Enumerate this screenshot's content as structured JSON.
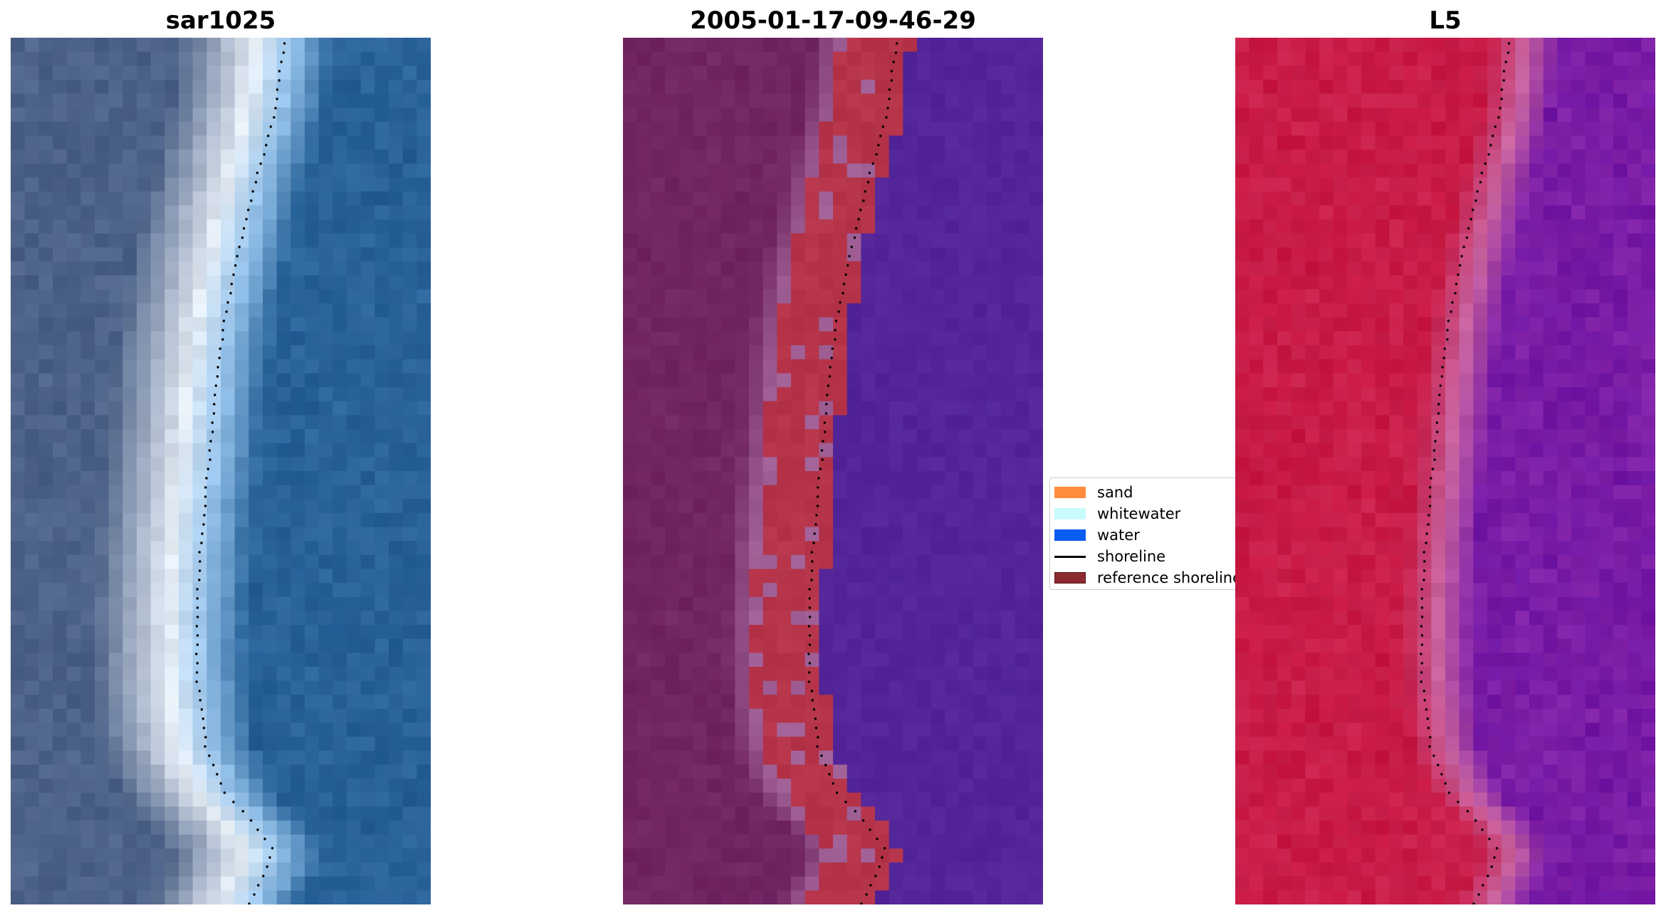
{
  "panels": [
    {
      "title": "sar1025",
      "kind": "rgb"
    },
    {
      "title": "2005-01-17-09-46-29",
      "kind": "classified"
    },
    {
      "title": "L5",
      "kind": "false-color"
    }
  ],
  "legend": {
    "items": [
      {
        "label": "sand",
        "color": "#ff8c3a",
        "shape": "patch"
      },
      {
        "label": "whitewater",
        "color": "#c8fcfb",
        "shape": "patch"
      },
      {
        "label": "water",
        "color": "#0a5cf0",
        "shape": "patch"
      },
      {
        "label": "shoreline",
        "color": "#000000",
        "shape": "line"
      },
      {
        "label": "reference shoreline",
        "color": "#8b2a30",
        "shape": "patch"
      }
    ]
  },
  "colors": {
    "rgb_land": "#4a5f86",
    "rgb_beach": "#e6eef6",
    "rgb_water": "#2a659c",
    "class_land": "#6e2360",
    "class_sand": "#b5344a",
    "class_water": "#532599",
    "class_edge": "#a06095",
    "fc_land": "#c7163f",
    "fc_water": "#8222a8",
    "shoreline": "#000000"
  }
}
